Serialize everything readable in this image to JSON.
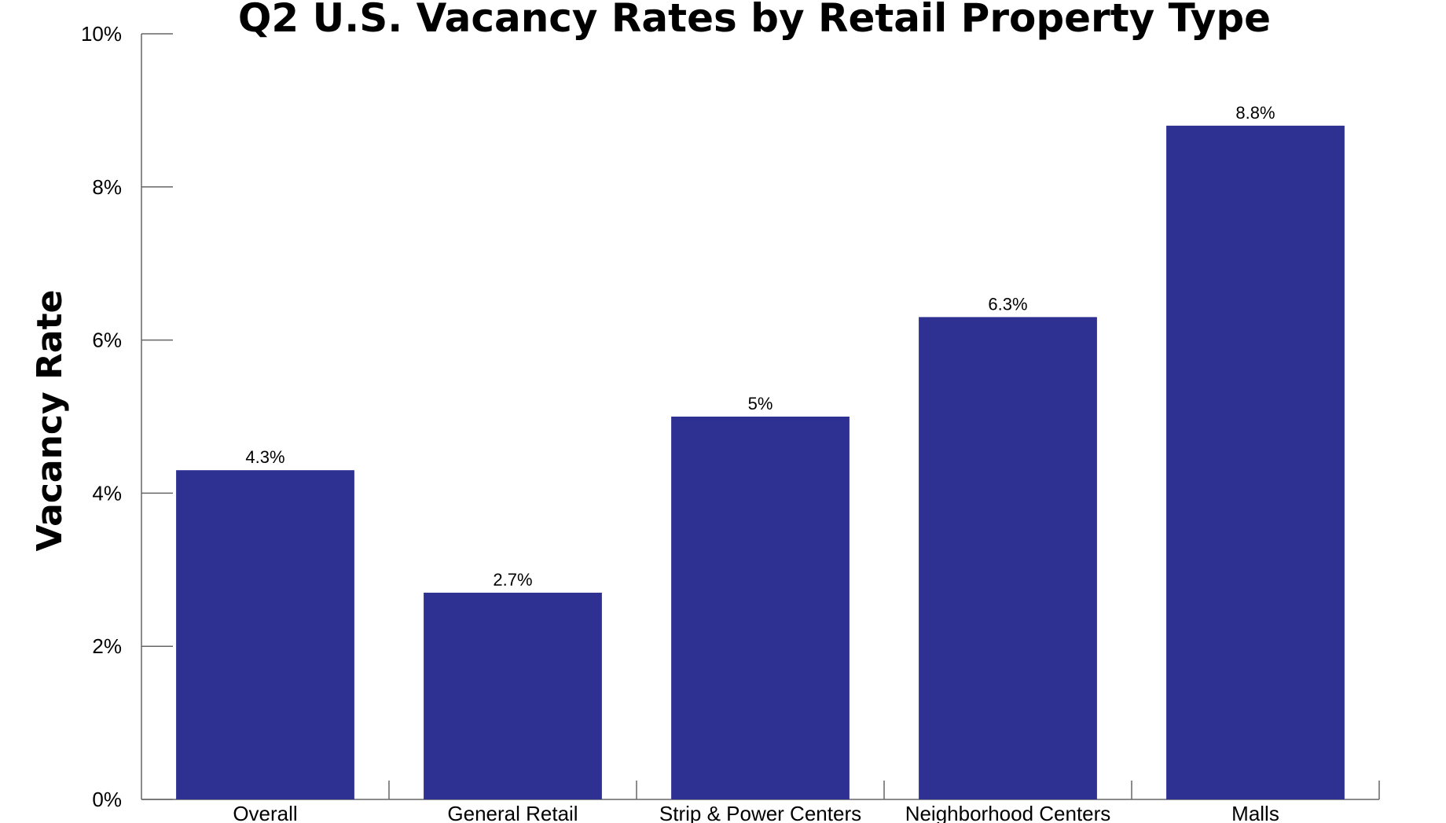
{
  "chart_data": {
    "type": "bar",
    "title": "Q2 U.S. Vacancy Rates by Retail Property Type",
    "xlabel": "",
    "ylabel": "Vacancy Rate",
    "categories": [
      "Overall",
      "General Retail",
      "Strip & Power Centers",
      "Neighborhood Centers",
      "Malls"
    ],
    "values": [
      4.3,
      2.7,
      5.0,
      6.3,
      8.8
    ],
    "value_labels": [
      "4.3%",
      "2.7%",
      "5%",
      "6.3%",
      "8.8%"
    ],
    "ylim": [
      0,
      10
    ],
    "yticks": [
      0,
      2,
      4,
      6,
      8,
      10
    ],
    "ytick_labels": [
      "0%",
      "2%",
      "4%",
      "6%",
      "8%",
      "10%"
    ],
    "grid": false,
    "legend": "none",
    "bar_color": "#2e3192",
    "axis_color": "#666666"
  }
}
